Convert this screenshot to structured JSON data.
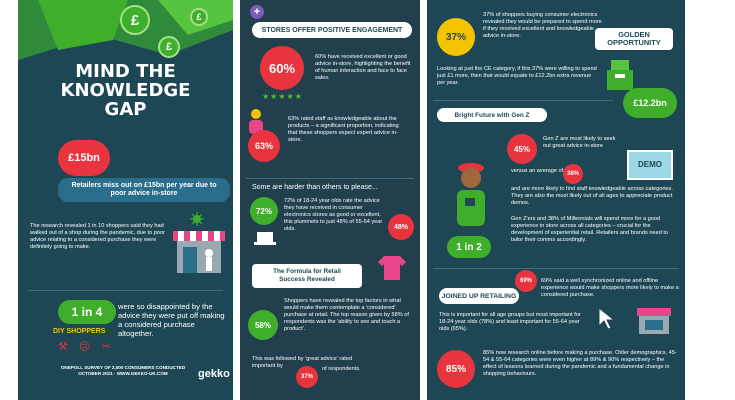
{
  "left": {
    "title_line1": "MIND THE",
    "title_line2": "KNOWLEDGE",
    "title_line3": "GAP",
    "badge_15bn": "£15bn",
    "retailers_text": "Retailers miss out on £15bn per year due to poor advice in-store",
    "research_text": "The research revealed 1 in 10 shoppers said they had walked out of a shop during the pandemic, due to poor advice relating to a considered purchase they were definitely going to make.",
    "one_in_four": "1 in 4",
    "diy_label": "DIY SHOPPERS",
    "disappointed_text": "were so disappointed by the advice they were put off making a considered purchase altogether.",
    "survey_line1": "ONEPOLL SURVEY OF 2,000 CONSUMERS CONDUCTED",
    "survey_line2": "OCTOBER 2021 · WWW.GEKKO-UK.COM",
    "logo": "gekko",
    "coin_symbol": "£"
  },
  "middle": {
    "engagement_heading": "STORES OFFER POSITIVE ENGAGEMENT",
    "stat_60": "60%",
    "text_60": "60% have received excellent or good advice in-store, highlighting the benefit of human interaction and face to face sales.",
    "stars": "★★★★★",
    "stat_63": "63%",
    "text_63": "63% rated staff as knowledgeable about the products – a significant proportion, indicating that these shoppers expect expert advice in-store.",
    "harder_heading": "Some are harder than others to please...",
    "stat_72": "72%",
    "text_72": "72% of 18-24 year olds rate the advice they have received in consumer electronics stores as good or excellent, this plummets to just 48% of 55-64 year olds.",
    "stat_48": "48%",
    "formula_heading_line1": "The Formula for Retail",
    "formula_heading_line2": "Success Revealed",
    "stat_58": "58%",
    "text_58": "Shoppers have revealed the top factors in what would make them contemplate a 'considered' purchase at retail. The top reason given by 58% of respondents was the 'ability to see and touch a product'.",
    "great_advice_text_a": "This was followed by 'great advice' rated important by",
    "stat_37b": "37%",
    "great_advice_text_b": "of respondents."
  },
  "right": {
    "stat_37": "37%",
    "text_37": "37% of shoppers buying consumer electronics revealed they would be prepared to spend more if they received excellent and knowledgeable advice in-store.",
    "golden_line1": "GOLDEN",
    "golden_line2": "OPPORTUNITY",
    "ce_text": "Looking at just the CE category, if this 37% were willing to spend just £1 more, then that would equate to £12.2bn extra revenue per year.",
    "badge_12bn": "£12.2bn",
    "genz_heading": "Bright Future with Gen Z",
    "stat_45": "45%",
    "text_45": "Gen Z are most likely to seek out great advice in-store",
    "versus_text": "versus an average of",
    "stat_38": "38%",
    "demo_label": "DEMO",
    "staff_text": "and are more likely to find staff knowledgeable across categories. They are also the most likely out of all ages to appreciate product demos.",
    "millennials_text": "Gen Z'ers and 38% of Millennials will spend more for a good experience in store across all categories – crucial for the development of experiential retail. Retailers and brands need to tailor their comms accordingly.",
    "one_in_two": "1 in 2",
    "stat_69": "69%",
    "joined_heading": "JOINED UP RETAILING",
    "text_69": "69% said a well synchronized online and offline experience would make shoppers more likely to make a considered purchase.",
    "important_text": "This is important for all age groups but most important for 18-24 year olds (78%) and least important for 55-64 year olds (65%).",
    "stat_85": "85%",
    "text_85": "85% now research online before making a purchase. Older demographics, 45-54 & 55-64 categories were even higher at 89% & 90% respectively – the effect of lessons learned during the pandemic and a fundamental change in shopping behaviours."
  },
  "colors": {
    "navy": "#1e4756",
    "red": "#e8343e",
    "green": "#3fae2a",
    "yellow": "#f4c300",
    "blue_pill": "#2a6e8c",
    "pink": "#e8458b"
  }
}
